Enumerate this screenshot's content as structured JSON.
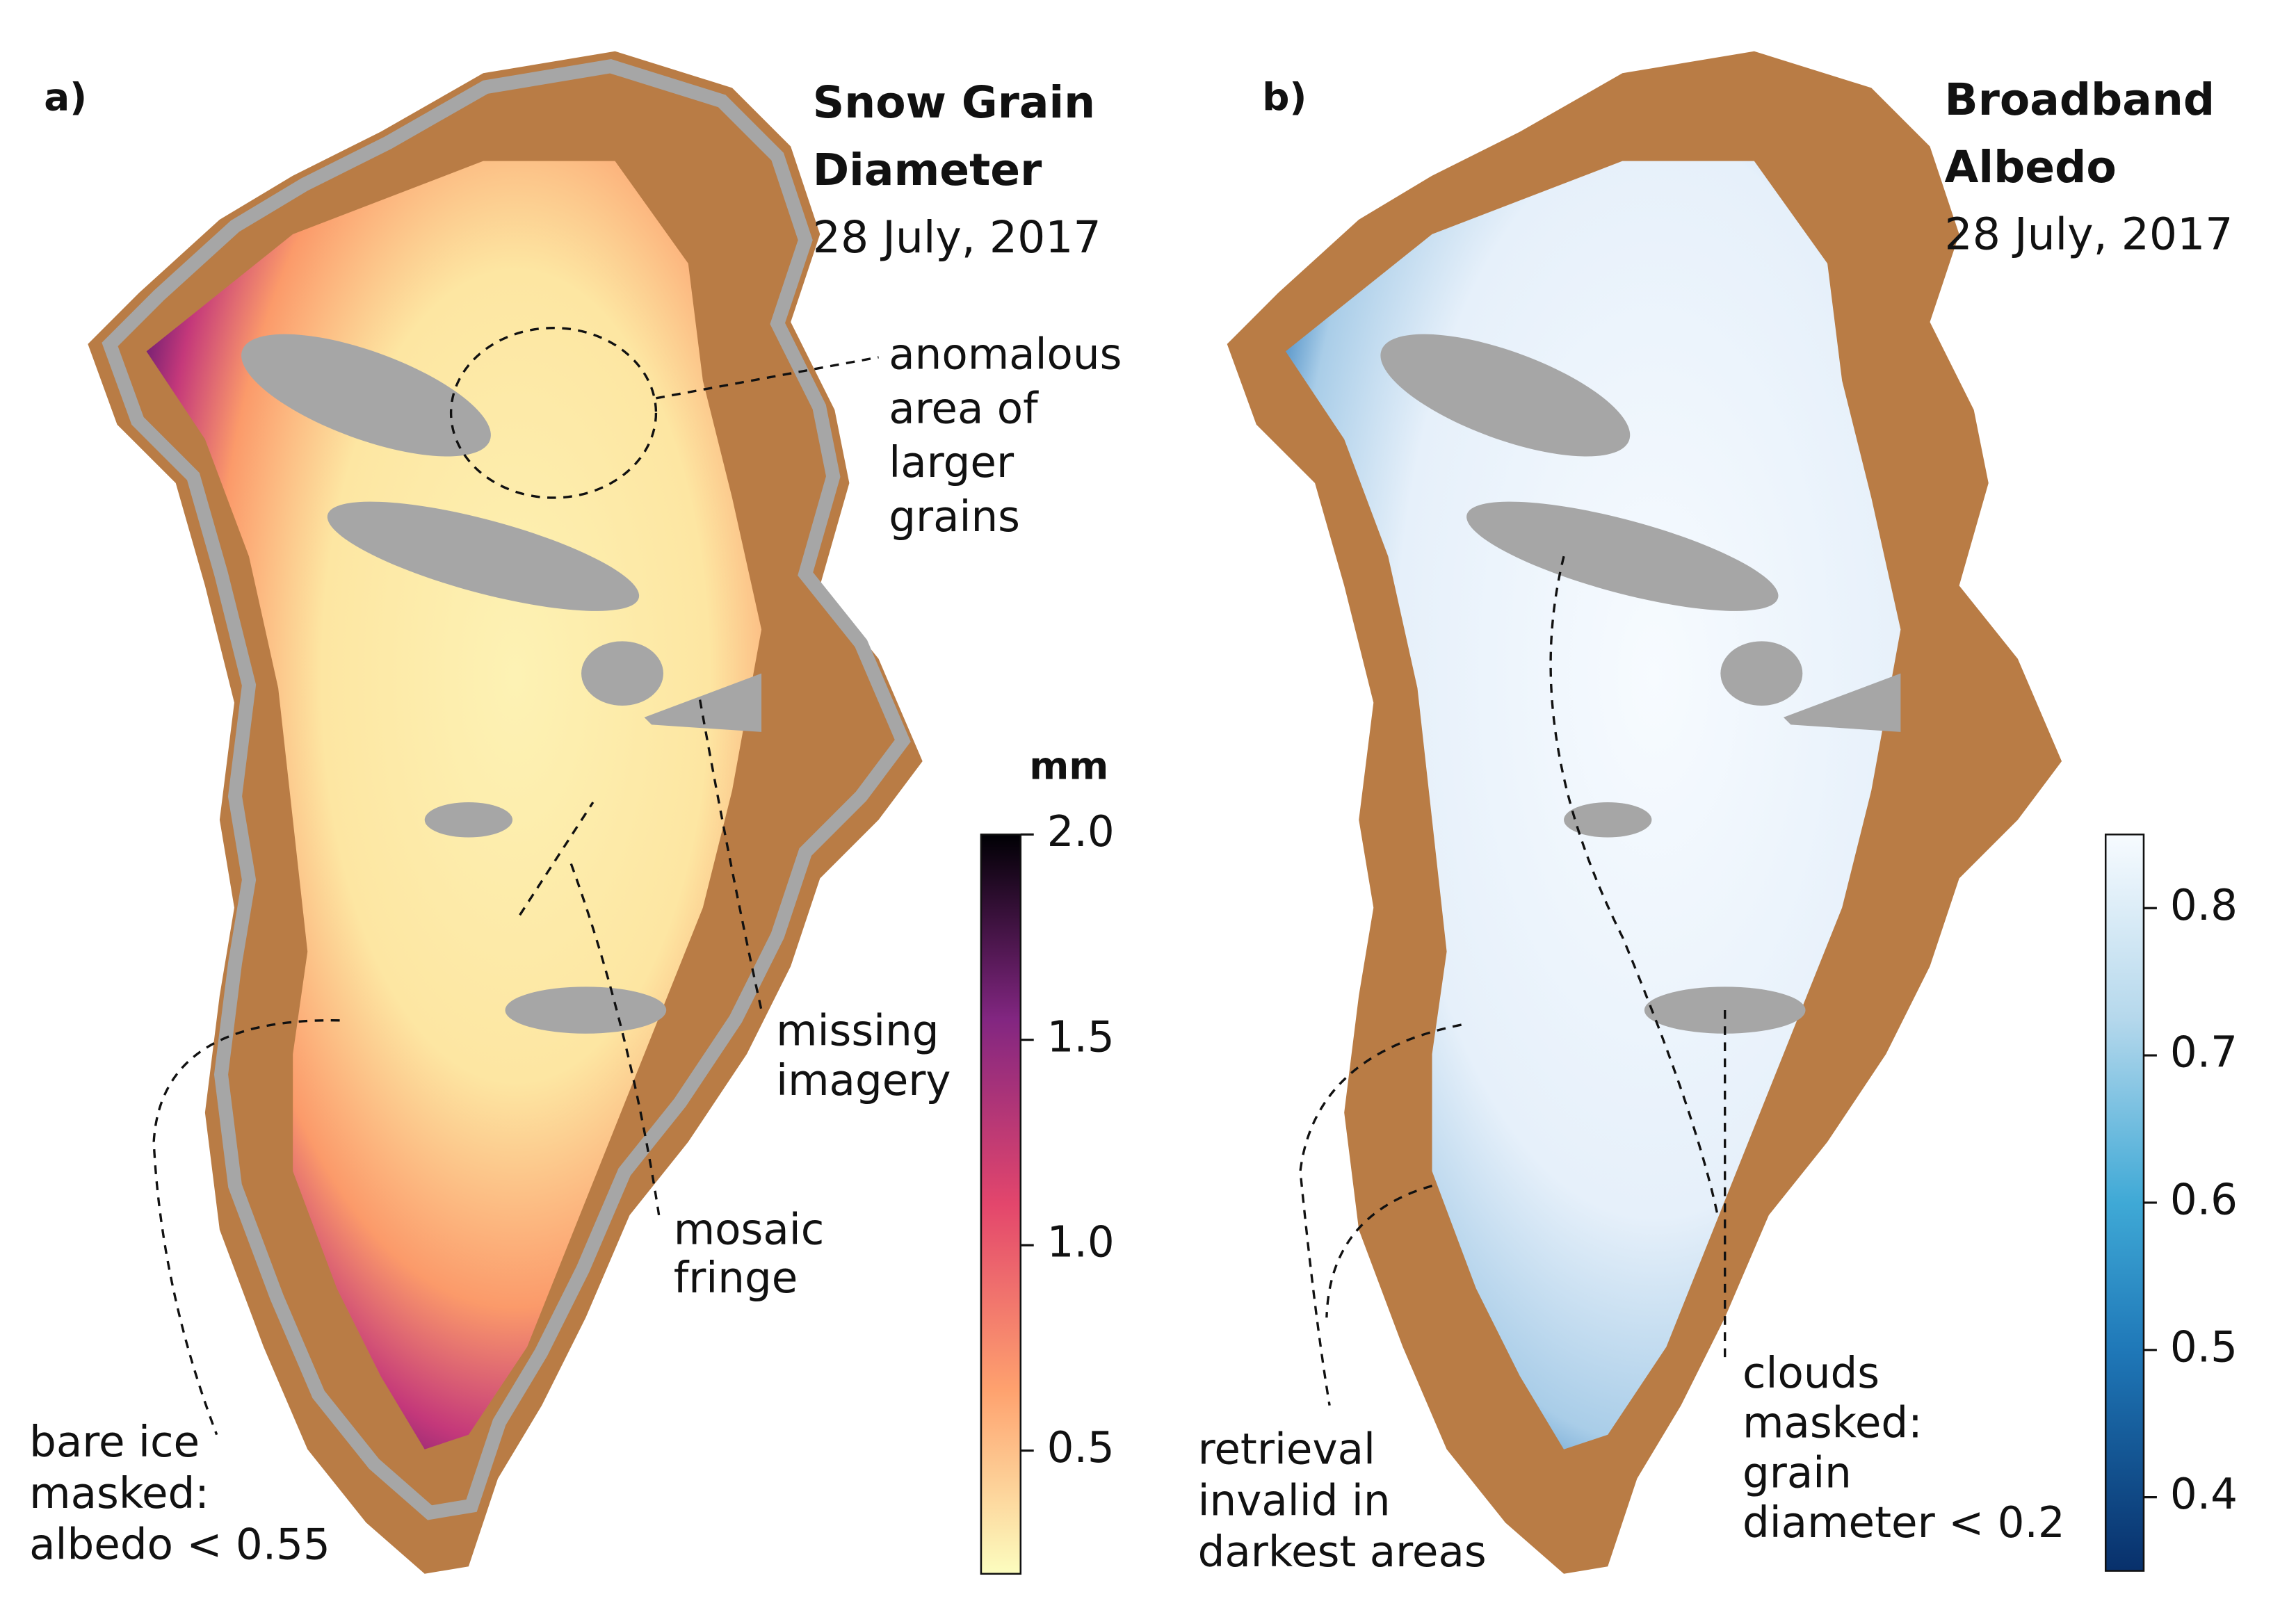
{
  "panels": [
    {
      "label": "a)",
      "title": [
        "Snow Grain",
        "Diameter"
      ],
      "date": "28 July, 2017",
      "colorbar": {
        "unit": "mm",
        "lim": [
          0.2,
          2.0
        ],
        "ticks": [
          0.5,
          {
            "value": 1,
            "label": "1.0"
          },
          1.5,
          {
            "value": 2,
            "label": "2.0"
          }
        ]
      },
      "annotations": [
        {
          "lines": [
            "anomalous",
            "area of",
            "larger",
            "grains"
          ]
        },
        {
          "lines": [
            "missing",
            "imagery"
          ]
        },
        {
          "lines": [
            "mosaic",
            "fringe"
          ]
        },
        {
          "lines": [
            "bare ice",
            "masked:",
            "albedo < 0.55"
          ]
        }
      ]
    },
    {
      "label": "b)",
      "title": [
        "Broadband",
        "Albedo"
      ],
      "date": "28 July, 2017",
      "colorbar": {
        "lim": [
          0.35,
          0.85
        ],
        "ticks": [
          0.4,
          0.5,
          0.6,
          0.7,
          0.8
        ]
      },
      "annotations": [
        {
          "lines": [
            "retrieval",
            "invalid in",
            "darkest areas"
          ]
        },
        {
          "lines": [
            "clouds",
            "masked:",
            "grain",
            "diameter < 0.2"
          ]
        }
      ]
    }
  ]
}
